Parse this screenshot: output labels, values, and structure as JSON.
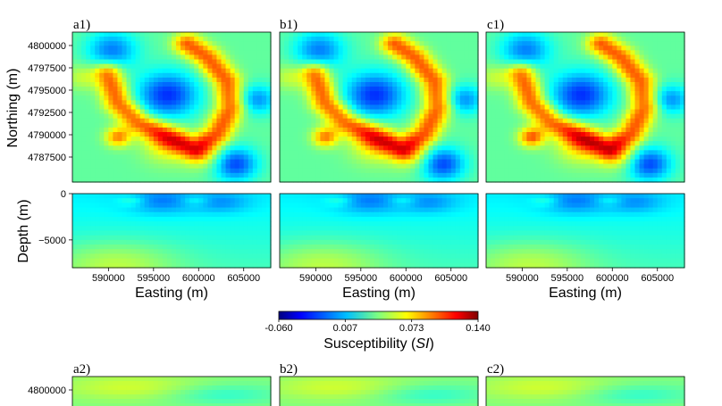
{
  "figure": {
    "colorbar": {
      "ticks": [
        "-0.060",
        "0.007",
        "0.073",
        "0.140"
      ],
      "label": "Susceptibility (",
      "label_italic": "SI",
      "label_end": ")",
      "colormap": "jet",
      "range": [
        -0.06,
        0.14
      ]
    }
  },
  "chart_data": [
    {
      "type": "heatmap",
      "panel": "a1)",
      "view": "plan",
      "xlabel": "",
      "ylabel": "Northing (m)",
      "xlim": [
        586000,
        608000
      ],
      "ylim": [
        4784700,
        4801500
      ],
      "yticks": [
        4787500,
        4790000,
        4792500,
        4795000,
        4797500,
        4800000
      ],
      "ytick_labels": [
        "4787500",
        "4790000",
        "4792500",
        "4795000",
        "4797500",
        "4800000"
      ],
      "value_range": [
        -0.06,
        0.14
      ],
      "scale": 0.85
    },
    {
      "type": "heatmap",
      "panel": "b1)",
      "view": "plan",
      "xlim": [
        586000,
        608000
      ],
      "ylim": [
        4784700,
        4801500
      ],
      "value_range": [
        -0.06,
        0.14
      ],
      "scale": 0.88
    },
    {
      "type": "heatmap",
      "panel": "c1)",
      "view": "plan",
      "xlim": [
        586000,
        608000
      ],
      "ylim": [
        4784700,
        4801500
      ],
      "value_range": [
        -0.06,
        0.14
      ],
      "scale": 1.0
    },
    {
      "type": "heatmap",
      "panel": "a1-section",
      "view": "section",
      "xlabel": "Easting (m)",
      "ylabel": "Depth (m)",
      "xlim": [
        586000,
        608000
      ],
      "ylim": [
        -8000,
        0
      ],
      "xticks": [
        590000,
        595000,
        600000,
        605000
      ],
      "xtick_labels": [
        "590000",
        "595000",
        "600000",
        "605000"
      ],
      "yticks": [
        0,
        -5000
      ],
      "ytick_labels": [
        "0",
        "−5000"
      ],
      "value_range": [
        -0.06,
        0.14
      ]
    },
    {
      "type": "heatmap",
      "panel": "b1-section",
      "view": "section",
      "xlabel": "Easting (m)",
      "xlim": [
        586000,
        608000
      ],
      "ylim": [
        -8000,
        0
      ],
      "xticks": [
        590000,
        595000,
        600000,
        605000
      ],
      "xtick_labels": [
        "590000",
        "595000",
        "600000",
        "605000"
      ],
      "value_range": [
        -0.06,
        0.14
      ]
    },
    {
      "type": "heatmap",
      "panel": "c1-section",
      "view": "section",
      "xlabel": "Easting (m)",
      "xlim": [
        586000,
        608000
      ],
      "ylim": [
        -8000,
        0
      ],
      "xticks": [
        590000,
        595000,
        600000,
        605000
      ],
      "xtick_labels": [
        "590000",
        "595000",
        "600000",
        "605000"
      ],
      "value_range": [
        -0.06,
        0.14
      ]
    },
    {
      "type": "heatmap",
      "panel": "a2)",
      "view": "plan",
      "xlim": [
        586000,
        608000
      ],
      "ylim": [
        4784700,
        4801500
      ],
      "yticks": [
        4800000
      ],
      "ytick_labels": [
        "4800000"
      ],
      "value_range": [
        -0.06,
        0.14
      ]
    },
    {
      "type": "heatmap",
      "panel": "b2)",
      "view": "plan",
      "value_range": [
        -0.06,
        0.14
      ]
    },
    {
      "type": "heatmap",
      "panel": "c2)",
      "view": "plan",
      "value_range": [
        -0.06,
        0.14
      ]
    }
  ]
}
